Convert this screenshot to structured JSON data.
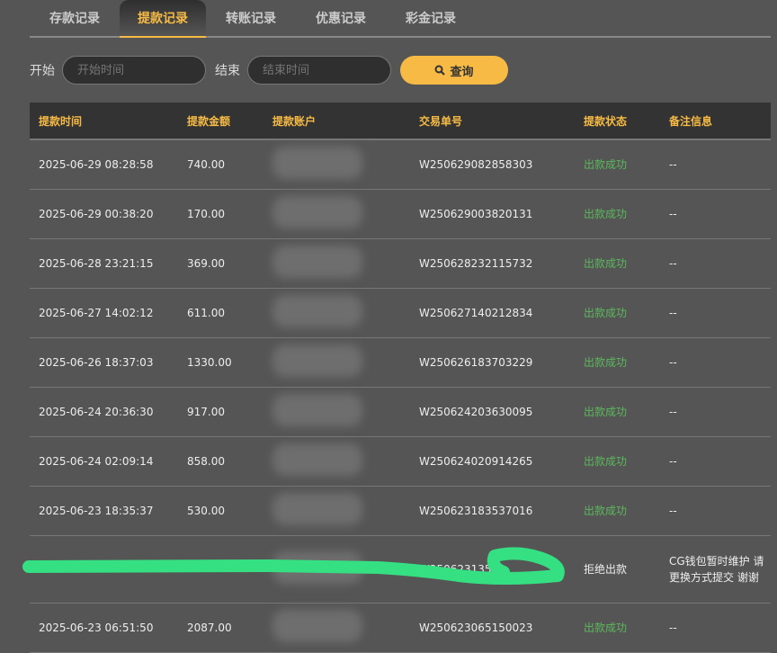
{
  "tabs": [
    "存款记录",
    "提款记录",
    "转账记录",
    "优惠记录",
    "彩金记录"
  ],
  "active_tab": 1,
  "filter": {
    "start_label": "开始",
    "start_placeholder": "开始时间",
    "end_label": "结束",
    "end_placeholder": "结束时间",
    "query_label": "查询",
    "query_icon": "search-icon"
  },
  "colors": {
    "accent": "#f7bb45",
    "success": "#5cb85c",
    "scribble": "#35e083"
  },
  "table": {
    "headers": [
      "提款时间",
      "提款金额",
      "提款账户",
      "交易单号",
      "提款状态",
      "备注信息"
    ],
    "rows": [
      {
        "time": "2025-06-29 08:28:58",
        "amount": "740.00",
        "order": "W250629082858303",
        "status": "出款成功",
        "note": "--"
      },
      {
        "time": "2025-06-29 00:38:20",
        "amount": "170.00",
        "order": "W250629003820131",
        "status": "出款成功",
        "note": "--"
      },
      {
        "time": "2025-06-28 23:21:15",
        "amount": "369.00",
        "order": "W250628232115732",
        "status": "出款成功",
        "note": "--"
      },
      {
        "time": "2025-06-27 14:02:12",
        "amount": "611.00",
        "order": "W250627140212834",
        "status": "出款成功",
        "note": "--"
      },
      {
        "time": "2025-06-26 18:37:03",
        "amount": "1330.00",
        "order": "W250626183703229",
        "status": "出款成功",
        "note": "--"
      },
      {
        "time": "2025-06-24 20:36:30",
        "amount": "917.00",
        "order": "W250624203630095",
        "status": "出款成功",
        "note": "--"
      },
      {
        "time": "2025-06-24 02:09:14",
        "amount": "858.00",
        "order": "W250624020914265",
        "status": "出款成功",
        "note": "--"
      },
      {
        "time": "2025-06-23 18:35:37",
        "amount": "530.00",
        "order": "W250623183537016",
        "status": "出款成功",
        "note": "--"
      },
      {
        "time": "",
        "amount": "",
        "order": "W2506231354",
        "status": "拒绝出款",
        "note": "CG钱包暂时维护 请更换方式提交 谢谢"
      },
      {
        "time": "2025-06-23 06:51:50",
        "amount": "2087.00",
        "order": "W250623065150023",
        "status": "出款成功",
        "note": "--"
      }
    ]
  }
}
